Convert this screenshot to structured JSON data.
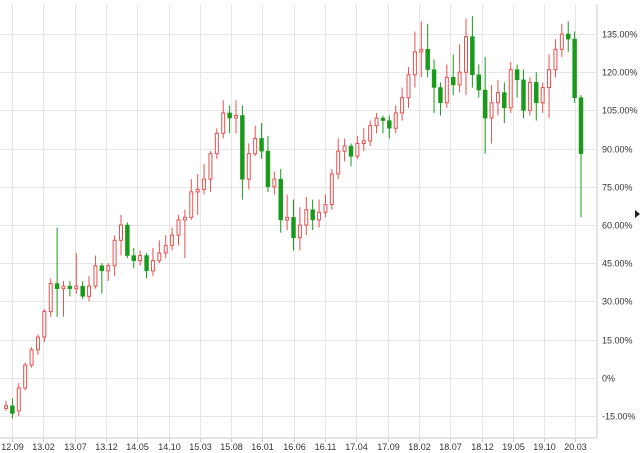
{
  "chart_data": {
    "type": "candlestick",
    "x_tick_labels": [
      "12.09",
      "13.02",
      "13.07",
      "13.12",
      "14.05",
      "14.10",
      "15.03",
      "15.08",
      "16.01",
      "16.06",
      "16.11",
      "17.04",
      "17.09",
      "18.02",
      "18.07",
      "18.12",
      "19.05",
      "19.10",
      "20.03"
    ],
    "y_tick_labels": [
      "135.00%",
      "120.00%",
      "105.00%",
      "90.00%",
      "75.00%",
      "60.00%",
      "45.00%",
      "30.00%",
      "15.00%",
      "0%",
      "-15.00%"
    ],
    "ylim": [
      -20,
      145
    ],
    "grid": true,
    "colors": {
      "up": "#e8504f",
      "down": "#1a9a1a",
      "grid": "#e6e6e6",
      "axis": "#c8c8c8"
    },
    "candles": [
      [
        -12,
        -11,
        -9,
        -13
      ],
      [
        -11,
        -14,
        -8,
        -16
      ],
      [
        -13,
        -4,
        -2,
        -15
      ],
      [
        -4,
        5,
        6,
        -5
      ],
      [
        5,
        11,
        12,
        4
      ],
      [
        11,
        16,
        17,
        9
      ],
      [
        16,
        26,
        27,
        14
      ],
      [
        26,
        37,
        39,
        24
      ],
      [
        37,
        35,
        59,
        24
      ],
      [
        35,
        36,
        38,
        24
      ],
      [
        36,
        35,
        38,
        32
      ],
      [
        35,
        36,
        49,
        33
      ],
      [
        36,
        32,
        38,
        31
      ],
      [
        32,
        36,
        40,
        30
      ],
      [
        36,
        44,
        48,
        35
      ],
      [
        44,
        42,
        45,
        33
      ],
      [
        42,
        44,
        45,
        38
      ],
      [
        44,
        54,
        56,
        40
      ],
      [
        54,
        60,
        64,
        48
      ],
      [
        60,
        48,
        61,
        47
      ],
      [
        48,
        46,
        51,
        43
      ],
      [
        46,
        48,
        50,
        44
      ],
      [
        48,
        42,
        49,
        39
      ],
      [
        42,
        46,
        51,
        40
      ],
      [
        46,
        49,
        54,
        45
      ],
      [
        49,
        52,
        56,
        47
      ],
      [
        52,
        56,
        59,
        50
      ],
      [
        56,
        62,
        64,
        52
      ],
      [
        62,
        63,
        66,
        47
      ],
      [
        63,
        73,
        78,
        62
      ],
      [
        73,
        74,
        80,
        64
      ],
      [
        74,
        78,
        84,
        72
      ],
      [
        78,
        88,
        89,
        73
      ],
      [
        88,
        96,
        98,
        86
      ],
      [
        96,
        104,
        109,
        94
      ],
      [
        104,
        102,
        107,
        96
      ],
      [
        102,
        103,
        109,
        96
      ],
      [
        103,
        78,
        107,
        70
      ],
      [
        78,
        88,
        92,
        74
      ],
      [
        88,
        94,
        99,
        87
      ],
      [
        94,
        89,
        100,
        86
      ],
      [
        89,
        75,
        95,
        73
      ],
      [
        75,
        78,
        81,
        72
      ],
      [
        78,
        62,
        82,
        57
      ],
      [
        62,
        63,
        72,
        58
      ],
      [
        63,
        55,
        70,
        50
      ],
      [
        55,
        60,
        67,
        50
      ],
      [
        60,
        66,
        71,
        56
      ],
      [
        66,
        62,
        70,
        58
      ],
      [
        62,
        65,
        70,
        59
      ],
      [
        65,
        68,
        72,
        63
      ],
      [
        68,
        80,
        82,
        66
      ],
      [
        80,
        89,
        94,
        78
      ],
      [
        89,
        91,
        94,
        85
      ],
      [
        91,
        87,
        92,
        83
      ],
      [
        87,
        92,
        95,
        86
      ],
      [
        92,
        93,
        98,
        89
      ],
      [
        93,
        99,
        101,
        91
      ],
      [
        99,
        102,
        104,
        96
      ],
      [
        102,
        101,
        103,
        96
      ],
      [
        101,
        98,
        103,
        94
      ],
      [
        98,
        104,
        107,
        96
      ],
      [
        104,
        110,
        114,
        101
      ],
      [
        110,
        119,
        122,
        106
      ],
      [
        119,
        128,
        136,
        114
      ],
      [
        128,
        129,
        140,
        118
      ],
      [
        129,
        121,
        139,
        118
      ],
      [
        121,
        114,
        125,
        104
      ],
      [
        114,
        108,
        116,
        103
      ],
      [
        108,
        118,
        123,
        106
      ],
      [
        118,
        115,
        127,
        111
      ],
      [
        115,
        120,
        131,
        112
      ],
      [
        120,
        134,
        141,
        111
      ],
      [
        134,
        119,
        142,
        114
      ],
      [
        119,
        113,
        123,
        110
      ],
      [
        113,
        102,
        126,
        88
      ],
      [
        102,
        108,
        115,
        92
      ],
      [
        108,
        112,
        117,
        103
      ],
      [
        112,
        106,
        116,
        100
      ],
      [
        106,
        121,
        124,
        104
      ],
      [
        121,
        117,
        123,
        110
      ],
      [
        117,
        105,
        121,
        102
      ],
      [
        105,
        116,
        118,
        103
      ],
      [
        116,
        108,
        120,
        101
      ],
      [
        108,
        114,
        116,
        104
      ],
      [
        114,
        121,
        127,
        102
      ],
      [
        121,
        129,
        133,
        118
      ],
      [
        129,
        135,
        139,
        126
      ],
      [
        135,
        133,
        140,
        128
      ],
      [
        133,
        110,
        136,
        108
      ],
      [
        110,
        88,
        111,
        63
      ]
    ]
  }
}
